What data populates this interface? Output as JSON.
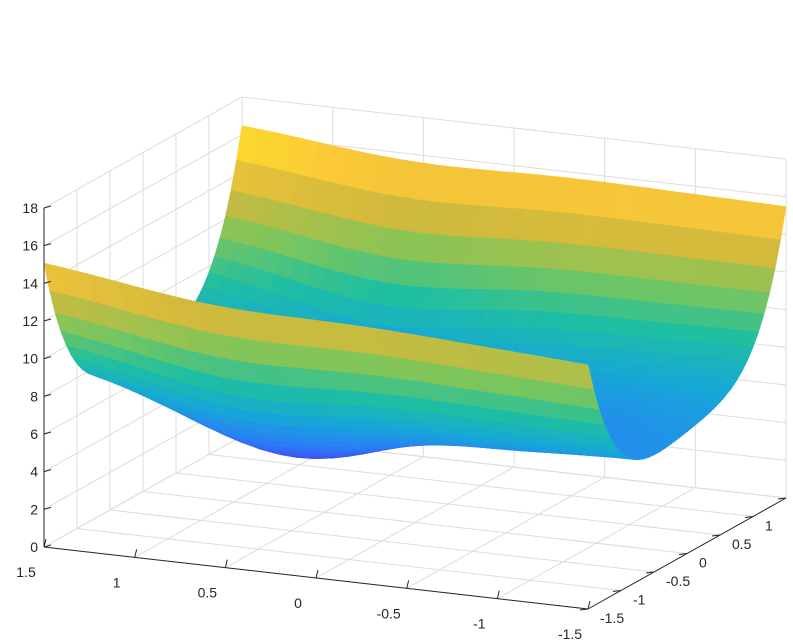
{
  "chart_data": {
    "type": "surface",
    "title": "",
    "xlabel": "",
    "ylabel": "",
    "zlabel": "",
    "grid": true,
    "colormap": "parula",
    "colormap_colors": [
      "#3e26a8",
      "#4245f4",
      "#2a80f6",
      "#16a8d6",
      "#1fbfa1",
      "#7bc65c",
      "#d2ba3c",
      "#fcc838",
      "#f9fb15"
    ],
    "xlim": [
      -1.5,
      1.5
    ],
    "ylim": [
      -1.5,
      1.5
    ],
    "zlim": [
      0,
      18
    ],
    "x_ticks": [
      {
        "value": 1.5,
        "label": "1.5"
      },
      {
        "value": 1,
        "label": "1"
      },
      {
        "value": 0.5,
        "label": "0.5"
      },
      {
        "value": 0,
        "label": "0"
      },
      {
        "value": -0.5,
        "label": "-0.5"
      },
      {
        "value": -1,
        "label": "-1"
      },
      {
        "value": -1.5,
        "label": "-1.5"
      }
    ],
    "y_ticks": [
      {
        "value": -1.5,
        "label": "-1.5"
      },
      {
        "value": -1,
        "label": "-1"
      },
      {
        "value": -0.5,
        "label": "-0.5"
      },
      {
        "value": 0,
        "label": "0"
      },
      {
        "value": 0.5,
        "label": "0.5"
      },
      {
        "value": 1,
        "label": "1"
      },
      {
        "value": 1.5,
        "label": "1.5"
      }
    ],
    "z_ticks": [
      {
        "value": 0,
        "label": "0"
      },
      {
        "value": 2,
        "label": "2"
      },
      {
        "value": 4,
        "label": "4"
      },
      {
        "value": 6,
        "label": "6"
      },
      {
        "value": 8,
        "label": "8"
      },
      {
        "value": 10,
        "label": "10"
      },
      {
        "value": 12,
        "label": "12"
      },
      {
        "value": 14,
        "label": "14"
      },
      {
        "value": 16,
        "label": "16"
      },
      {
        "value": 18,
        "label": "18"
      }
    ],
    "corner_values": [
      {
        "x": 1.5,
        "y": 1.5,
        "z": 16.6
      },
      {
        "x": 1.5,
        "y": -1.5,
        "z": 15.2
      },
      {
        "x": -1.5,
        "y": 1.5,
        "z": 15.5
      },
      {
        "x": -1.5,
        "y": -1.5,
        "z": 13.0
      }
    ],
    "edge_minima": [
      {
        "x": 1.5,
        "y": 0,
        "z": 8.0
      },
      {
        "x": -1.5,
        "y": 0,
        "z": 6.8
      }
    ],
    "surface_minimum": {
      "x": 0.55,
      "y": 0,
      "z": 1.9
    }
  }
}
